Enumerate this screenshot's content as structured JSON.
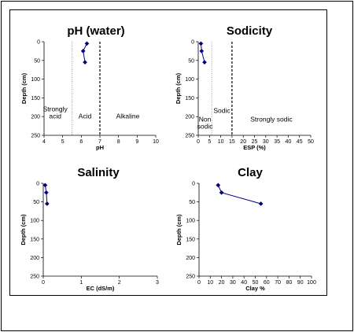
{
  "chart_data": [
    {
      "type": "line",
      "title": "pH (water)",
      "xlabel": "pH",
      "ylabel": "Depth (cm)",
      "xlim": [
        4,
        10
      ],
      "ylim": [
        0,
        250
      ],
      "y_reversed": true,
      "xticks": [
        "4",
        "5",
        "6",
        "7",
        "8",
        "9",
        "10"
      ],
      "yticks": [
        "0",
        "50",
        "100",
        "150",
        "200",
        "250"
      ],
      "series": [
        {
          "x": [
            6.3,
            6.1,
            6.2
          ],
          "y": [
            5,
            25,
            55
          ]
        }
      ],
      "thresholds": [
        {
          "x": 5.5,
          "style": "dotted",
          "color": "#888888"
        },
        {
          "x": 7.0,
          "style": "dashed",
          "color": "#000000"
        }
      ],
      "zones": [
        {
          "lines": [
            "Strongly",
            "acid"
          ],
          "x": 4.6,
          "y": [
            186,
            205
          ]
        },
        {
          "lines": [
            "Acid"
          ],
          "x": 6.2,
          "y": [
            205
          ]
        },
        {
          "lines": [
            "Alkaline"
          ],
          "x": 8.5,
          "y": [
            205
          ]
        }
      ]
    },
    {
      "type": "line",
      "title": "Sodicity",
      "xlabel": "ESP (%)",
      "ylabel": "Depth (cm)",
      "xlim": [
        0,
        50
      ],
      "ylim": [
        0,
        250
      ],
      "y_reversed": true,
      "xticks": [
        "0",
        "5",
        "10",
        "15",
        "20",
        "25",
        "30",
        "35",
        "40",
        "45",
        "50"
      ],
      "yticks": [
        "0",
        "50",
        "100",
        "150",
        "200",
        "250"
      ],
      "series": [
        {
          "x": [
            1.2,
            1.5,
            2.8
          ],
          "y": [
            5,
            25,
            55
          ]
        }
      ],
      "thresholds": [
        {
          "x": 6,
          "style": "dotted",
          "color": "#888888"
        },
        {
          "x": 15,
          "style": "dashed",
          "color": "#000000"
        }
      ],
      "zones": [
        {
          "lines": [
            "Non",
            "sodic"
          ],
          "x": 3,
          "y": [
            213,
            232
          ]
        },
        {
          "lines": [
            "Sodic"
          ],
          "x": 10.5,
          "y": [
            190
          ]
        },
        {
          "lines": [
            "Strongly sodic"
          ],
          "x": 32.5,
          "y": [
            213
          ]
        }
      ]
    },
    {
      "type": "line",
      "title": "Salinity",
      "xlabel": "EC (dS/m)",
      "ylabel": "Depth (cm)",
      "xlim": [
        0,
        3
      ],
      "ylim": [
        0,
        250
      ],
      "y_reversed": true,
      "xticks": [
        "0",
        "1",
        "2",
        "3"
      ],
      "yticks": [
        "0",
        "50",
        "100",
        "150",
        "200",
        "250"
      ],
      "series": [
        {
          "x": [
            0.05,
            0.08,
            0.1
          ],
          "y": [
            5,
            25,
            55
          ]
        }
      ],
      "thresholds": [],
      "zones": []
    },
    {
      "type": "line",
      "title": "Clay",
      "xlabel": "Clay %",
      "ylabel": "Depth (cm)",
      "xlim": [
        0,
        100
      ],
      "ylim": [
        0,
        250
      ],
      "y_reversed": true,
      "xticks": [
        "0",
        "10",
        "20",
        "30",
        "40",
        "50",
        "60",
        "70",
        "80",
        "90",
        "100"
      ],
      "yticks": [
        "0",
        "50",
        "100",
        "150",
        "200",
        "250"
      ],
      "series": [
        {
          "x": [
            17,
            20,
            55
          ],
          "y": [
            5,
            25,
            55
          ]
        }
      ],
      "thresholds": [],
      "zones": []
    }
  ],
  "colors": {
    "series": "#000080",
    "axis": "#000000",
    "frame": "#000000"
  }
}
